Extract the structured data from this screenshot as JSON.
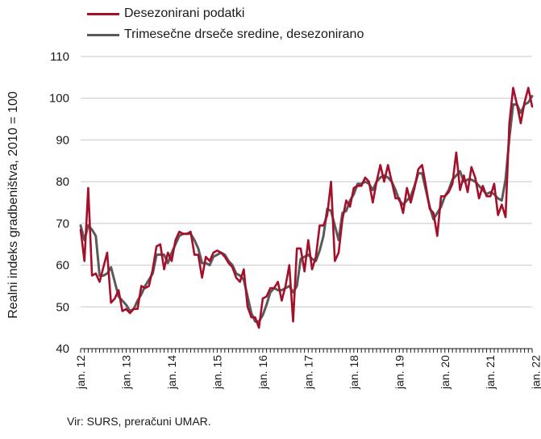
{
  "chart_data": {
    "type": "line",
    "ylabel": "Realni indeks gradbeništva, 2010 = 100",
    "xlabel": "",
    "ylim": [
      40,
      110
    ],
    "yticks": [
      40,
      50,
      60,
      70,
      80,
      90,
      100,
      110
    ],
    "x_tick_labels": [
      "jan. 12",
      "jan. 13",
      "jan. 14",
      "jan. 15",
      "jan. 16",
      "jan. 17",
      "jan. 18",
      "jan. 19",
      "jan. 20",
      "jan. 21",
      "jan. 22"
    ],
    "x_start": "jan. 12",
    "grid": "horizontal",
    "legend_position": "top-left",
    "colors": {
      "monthly": "#a50f2a",
      "moving_avg": "#5a5a5a"
    },
    "series": [
      {
        "name": "Desezonirani podatki",
        "color": "#a50f2a",
        "values": [
          68.5,
          61.0,
          78.5,
          57.5,
          58.0,
          56.0,
          59.5,
          63.0,
          51.0,
          52.0,
          54.0,
          49.0,
          49.5,
          48.5,
          49.5,
          49.5,
          55.0,
          54.5,
          55.0,
          59.0,
          64.5,
          65.0,
          59.0,
          63.0,
          61.0,
          66.0,
          68.0,
          67.5,
          67.5,
          68.0,
          62.5,
          62.5,
          57.0,
          62.0,
          61.0,
          63.0,
          63.5,
          63.0,
          62.0,
          60.5,
          59.5,
          57.0,
          56.0,
          59.0,
          50.0,
          47.5,
          47.5,
          45.0,
          52.0,
          52.5,
          54.5,
          54.5,
          56.0,
          51.5,
          55.0,
          60.0,
          46.5,
          64.0,
          64.0,
          58.5,
          66.0,
          59.0,
          62.0,
          69.5,
          69.5,
          72.0,
          80.0,
          61.0,
          63.0,
          71.0,
          75.5,
          74.0,
          78.5,
          79.0,
          79.0,
          81.0,
          80.0,
          75.0,
          80.0,
          84.0,
          80.0,
          84.0,
          80.0,
          76.0,
          76.0,
          72.5,
          78.5,
          75.0,
          78.5,
          83.0,
          84.0,
          79.0,
          73.5,
          72.5,
          67.0,
          76.5,
          76.5,
          77.5,
          79.5,
          87.0,
          78.0,
          81.5,
          77.5,
          83.5,
          81.0,
          76.0,
          79.0,
          76.5,
          76.5,
          79.5,
          72.0,
          74.5,
          71.5,
          94.0,
          102.5,
          98.5,
          94.0,
          99.0,
          102.5,
          98.0
        ]
      },
      {
        "name": "Trimesečne drseče sredine, desezonirano",
        "color": "#5a5a5a",
        "values": [
          69.5,
          66.0,
          69.5,
          68.5,
          67.0,
          57.5,
          57.5,
          58.0,
          59.5,
          56.0,
          52.5,
          51.5,
          50.5,
          49.0,
          49.5,
          51.5,
          53.0,
          55.0,
          56.5,
          58.0,
          62.5,
          62.5,
          62.5,
          60.5,
          63.0,
          65.0,
          67.0,
          67.5,
          67.5,
          67.5,
          66.0,
          64.0,
          60.5,
          60.5,
          60.0,
          62.0,
          62.5,
          63.0,
          62.5,
          61.0,
          60.0,
          58.0,
          57.5,
          56.5,
          52.5,
          48.5,
          46.5,
          46.5,
          48.0,
          50.5,
          53.5,
          54.5,
          54.0,
          54.0,
          54.5,
          55.0,
          53.5,
          55.0,
          61.5,
          62.0,
          62.5,
          61.5,
          61.0,
          63.5,
          67.0,
          73.5,
          73.0,
          69.5,
          66.0,
          72.5,
          73.0,
          75.5,
          77.0,
          79.5,
          79.5,
          80.0,
          79.5,
          78.0,
          80.0,
          81.0,
          81.5,
          81.0,
          80.0,
          78.0,
          75.5,
          74.5,
          75.5,
          76.5,
          79.0,
          82.0,
          82.0,
          78.0,
          74.0,
          71.0,
          72.5,
          74.0,
          76.5,
          78.0,
          80.5,
          81.5,
          82.5,
          80.0,
          80.5,
          80.5,
          80.0,
          79.0,
          78.0,
          77.0,
          77.5,
          77.0,
          76.0,
          75.5,
          80.5,
          90.5,
          98.5,
          98.5,
          96.5,
          98.5,
          99.0,
          100.5
        ]
      }
    ]
  },
  "source_text": "Vir: SURS, preračuni UMAR."
}
